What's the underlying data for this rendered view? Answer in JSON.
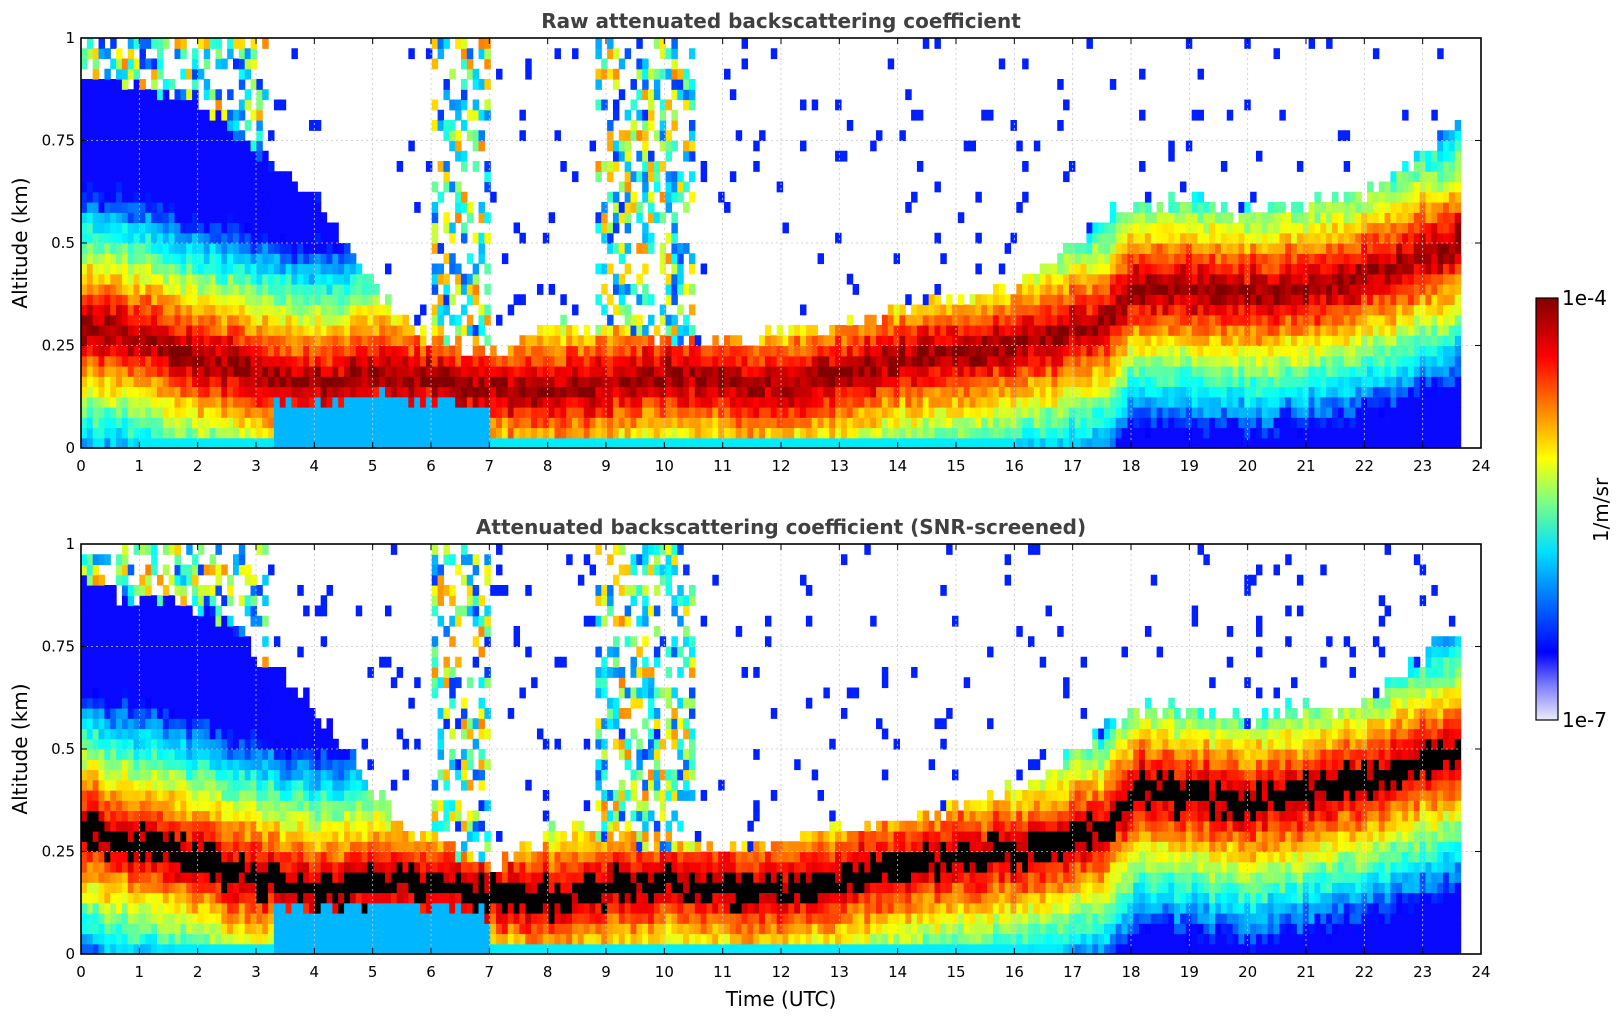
{
  "chart_data": [
    {
      "type": "heatmap",
      "title": "Raw attenuated backscattering coefficient",
      "xlabel": "",
      "ylabel": "Altitude (km)",
      "xlim": [
        0,
        24
      ],
      "ylim": [
        0,
        1
      ],
      "x_ticks": [
        "0",
        "1",
        "2",
        "3",
        "4",
        "5",
        "6",
        "7",
        "8",
        "9",
        "10",
        "11",
        "12",
        "13",
        "14",
        "15",
        "16",
        "17",
        "18",
        "19",
        "20",
        "21",
        "22",
        "23",
        "24"
      ],
      "y_ticks": [
        "0",
        "0.25",
        "0.5",
        "0.75",
        "1"
      ],
      "grid": true,
      "data_end_time": 23.65,
      "layer_top_km": [
        {
          "t": 0,
          "top": 0.9
        },
        {
          "t": 2,
          "top": 0.85
        },
        {
          "t": 4,
          "top": 0.6
        },
        {
          "t": 5.5,
          "top": 0.3
        },
        {
          "t": 7,
          "top": 0.22
        },
        {
          "t": 8,
          "top": 0.3
        },
        {
          "t": 9,
          "top": 0.3
        },
        {
          "t": 10,
          "top": 0.25
        },
        {
          "t": 11,
          "top": 0.27
        },
        {
          "t": 13,
          "top": 0.3
        },
        {
          "t": 14,
          "top": 0.33
        },
        {
          "t": 16,
          "top": 0.4
        },
        {
          "t": 17,
          "top": 0.5
        },
        {
          "t": 18,
          "top": 0.6
        },
        {
          "t": 20,
          "top": 0.58
        },
        {
          "t": 22,
          "top": 0.62
        },
        {
          "t": 23.6,
          "top": 0.8
        }
      ],
      "high_layer_km": [
        {
          "t": 0,
          "center": 0.3
        },
        {
          "t": 4,
          "center": 0.15
        },
        {
          "t": 5,
          "center": 0.18
        },
        {
          "t": 7,
          "center": 0.15
        },
        {
          "t": 8,
          "center": 0.14
        },
        {
          "t": 10,
          "center": 0.18
        },
        {
          "t": 12,
          "center": 0.15
        },
        {
          "t": 14,
          "center": 0.22
        },
        {
          "t": 16,
          "center": 0.25
        },
        {
          "t": 17.5,
          "center": 0.3
        },
        {
          "t": 18,
          "center": 0.4
        },
        {
          "t": 20,
          "center": 0.37
        },
        {
          "t": 22,
          "center": 0.42
        },
        {
          "t": 23.6,
          "center": 0.5
        }
      ]
    },
    {
      "type": "heatmap",
      "title": "Attenuated backscattering coefficient (SNR-screened)",
      "xlabel": "Time (UTC)",
      "ylabel": "Altitude (km)",
      "xlim": [
        0,
        24
      ],
      "ylim": [
        0,
        1
      ],
      "x_ticks": [
        "0",
        "1",
        "2",
        "3",
        "4",
        "5",
        "6",
        "7",
        "8",
        "9",
        "10",
        "11",
        "12",
        "13",
        "14",
        "15",
        "16",
        "17",
        "18",
        "19",
        "20",
        "21",
        "22",
        "23",
        "24"
      ],
      "y_ticks": [
        "0",
        "0.25",
        "0.5",
        "0.75",
        "1"
      ],
      "grid": true,
      "data_end_time": 23.65,
      "saturation_color": "#000000"
    }
  ],
  "colorbar": {
    "label": "1/m/sr",
    "max_label": "1e-4",
    "min_label": "1e-7",
    "scale": "log",
    "range": [
      1e-07,
      0.0001
    ],
    "colormap": [
      "#ecebfa",
      "#0000ff",
      "#00a0ff",
      "#00ffff",
      "#80ff80",
      "#ffff00",
      "#ff8000",
      "#ff0000",
      "#800000"
    ]
  }
}
